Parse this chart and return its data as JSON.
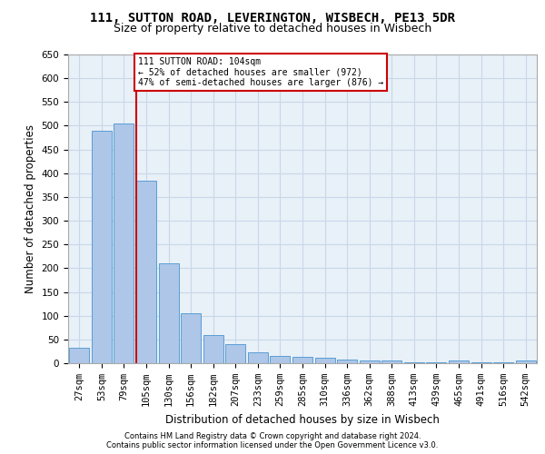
{
  "title_line1": "111, SUTTON ROAD, LEVERINGTON, WISBECH, PE13 5DR",
  "title_line2": "Size of property relative to detached houses in Wisbech",
  "xlabel": "Distribution of detached houses by size in Wisbech",
  "ylabel": "Number of detached properties",
  "footer_line1": "Contains HM Land Registry data © Crown copyright and database right 2024.",
  "footer_line2": "Contains public sector information licensed under the Open Government Licence v3.0.",
  "categories": [
    "27sqm",
    "53sqm",
    "79sqm",
    "105sqm",
    "130sqm",
    "156sqm",
    "182sqm",
    "207sqm",
    "233sqm",
    "259sqm",
    "285sqm",
    "310sqm",
    "336sqm",
    "362sqm",
    "388sqm",
    "413sqm",
    "439sqm",
    "465sqm",
    "491sqm",
    "516sqm",
    "542sqm"
  ],
  "values": [
    32,
    490,
    505,
    385,
    210,
    106,
    60,
    40,
    22,
    16,
    13,
    11,
    8,
    5,
    5,
    2,
    1,
    5,
    1,
    2,
    5
  ],
  "bar_color": "#aec6e8",
  "bar_edge_color": "#5a9fd4",
  "ref_line_color": "#cc0000",
  "annotation_text": "111 SUTTON ROAD: 104sqm\n← 52% of detached houses are smaller (972)\n47% of semi-detached houses are larger (876) →",
  "annotation_box_color": "#ffffff",
  "annotation_box_edge_color": "#cc0000",
  "ylim": [
    0,
    650
  ],
  "yticks": [
    0,
    50,
    100,
    150,
    200,
    250,
    300,
    350,
    400,
    450,
    500,
    550,
    600,
    650
  ],
  "grid_color": "#c8d8e8",
  "bg_color": "#e8f0f8",
  "title_fontsize": 10,
  "subtitle_fontsize": 9,
  "axis_label_fontsize": 8.5,
  "tick_fontsize": 7.5,
  "footer_fontsize": 6.0
}
